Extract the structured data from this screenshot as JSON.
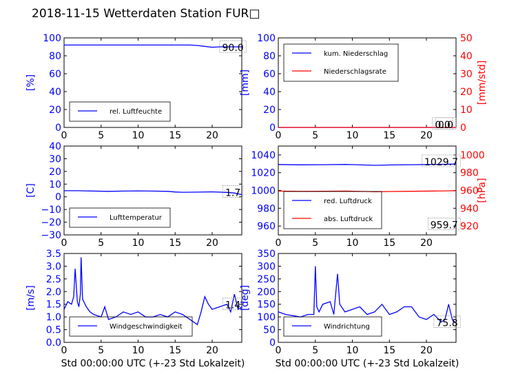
{
  "title": "2018-11-15 Wetterdaten Station FUR□",
  "chart_data": [
    {
      "type": "line",
      "panel": "top-left",
      "xlabel": "",
      "ylabel": "[%]",
      "xlim": [
        0,
        24
      ],
      "ylim": [
        0,
        100
      ],
      "xticks": [
        "0",
        "5",
        "10",
        "15",
        "20"
      ],
      "yticks": [
        "0",
        "20",
        "40",
        "60",
        "80",
        "100"
      ],
      "legend_position": "lower-left",
      "series": [
        {
          "name": "rel. Luftfeuchte",
          "color": "#0000ff",
          "x": [
            0,
            2,
            4,
            6,
            8,
            10,
            12,
            14,
            16,
            17,
            18,
            19,
            20,
            21,
            22,
            23,
            24
          ],
          "y": [
            92,
            92,
            92,
            92,
            92,
            92,
            92,
            92,
            92,
            92,
            91.5,
            90.5,
            89.5,
            90,
            90,
            90,
            90
          ]
        }
      ],
      "annotations": [
        {
          "text": "90.0",
          "x": 22.8,
          "y": 90
        }
      ]
    },
    {
      "type": "line",
      "panel": "top-right",
      "xlabel": "",
      "ylabel": "[mm]",
      "ylabel_right": "[mm/std]",
      "xlim": [
        0,
        24
      ],
      "ylim": [
        0,
        100
      ],
      "ylim_right": [
        0,
        50
      ],
      "xticks": [
        "0",
        "5",
        "10",
        "15",
        "20"
      ],
      "yticks": [
        "0",
        "20",
        "40",
        "60",
        "80",
        "100"
      ],
      "yticks_right": [
        "0",
        "10",
        "20",
        "30",
        "40",
        "50"
      ],
      "legend_position": "upper-left",
      "series": [
        {
          "name": "kum. Niederschlag",
          "color": "#0000ff",
          "x": [
            0,
            24
          ],
          "y": [
            0,
            0
          ]
        },
        {
          "name": "Niederschlagsrate",
          "color": "#ff0000",
          "axis": "right",
          "x": [
            0,
            24
          ],
          "y": [
            0,
            0
          ]
        }
      ],
      "annotations": [
        {
          "text": "0.0",
          "x": 22.2,
          "y": 4
        },
        {
          "text": "0.0",
          "x": 22.6,
          "y": 4
        }
      ]
    },
    {
      "type": "line",
      "panel": "middle-left",
      "xlabel": "",
      "ylabel": "[C]",
      "xlim": [
        0,
        24
      ],
      "ylim": [
        -30,
        40
      ],
      "xticks": [
        "0",
        "5",
        "10",
        "15",
        "20"
      ],
      "yticks": [
        "−30",
        "−20",
        "−10",
        "0",
        "10",
        "20",
        "30",
        "40"
      ],
      "legend_position": "lower-left",
      "series": [
        {
          "name": "Lufttemperatur",
          "color": "#0000ff",
          "x": [
            0,
            2,
            4,
            6,
            8,
            10,
            12,
            14,
            15,
            16,
            18,
            20,
            22,
            23,
            24
          ],
          "y": [
            4.8,
            4.8,
            4.5,
            4.3,
            4.5,
            4.7,
            4.5,
            4.3,
            3.8,
            3.6,
            3.7,
            3.9,
            3.5,
            3.0,
            1.7
          ]
        }
      ],
      "annotations": [
        {
          "text": "1.7",
          "x": 22.8,
          "y": 4
        }
      ]
    },
    {
      "type": "line",
      "panel": "middle-right",
      "xlabel": "",
      "ylabel": "",
      "ylabel_right": "[hPa]",
      "xlim": [
        0,
        24
      ],
      "ylim": [
        950,
        1050
      ],
      "ylim_right": [
        910,
        1010
      ],
      "xticks": [
        "0",
        "5",
        "10",
        "15",
        "20"
      ],
      "yticks": [
        "960",
        "980",
        "1000",
        "1020",
        "1040"
      ],
      "yticks_right": [
        "920",
        "940",
        "960",
        "980",
        "1000"
      ],
      "legend_position": "lower-left",
      "series": [
        {
          "name": "red. Luftdruck",
          "color": "#0000ff",
          "x": [
            0,
            3,
            6,
            9,
            12,
            13,
            15,
            18,
            21,
            24
          ],
          "y": [
            1029.2,
            1028.8,
            1029.0,
            1029.3,
            1028.6,
            1028.3,
            1028.7,
            1029.0,
            1029.3,
            1029.7
          ]
        },
        {
          "name": "abs. Luftdruck",
          "color": "#ff0000",
          "axis": "right",
          "x": [
            0,
            3,
            6,
            9,
            12,
            13,
            15,
            18,
            21,
            24
          ],
          "y": [
            959.3,
            959.0,
            959.1,
            959.3,
            958.8,
            958.6,
            958.8,
            959.1,
            959.4,
            959.7
          ]
        }
      ],
      "annotations": [
        {
          "text": "1029.7",
          "x": 22.0,
          "y": 1033
        },
        {
          "text": "959.7",
          "x": 22.4,
          "y": 962
        }
      ]
    },
    {
      "type": "line",
      "panel": "bottom-left",
      "xlabel": "Std 00:00:00 UTC (+-23 Std Lokalzeit)",
      "ylabel": "[m/s]",
      "xlim": [
        0,
        24
      ],
      "ylim": [
        0,
        3.5
      ],
      "xticks": [
        "0",
        "5",
        "10",
        "15",
        "20"
      ],
      "yticks": [
        "0.0",
        "0.5",
        "1.0",
        "1.5",
        "2.0",
        "2.5",
        "3.0",
        "3.5"
      ],
      "legend_position": "lower-center",
      "series": [
        {
          "name": "Windgeschwindigkeit",
          "color": "#0000ff",
          "x": [
            0,
            0.5,
            1,
            1.3,
            1.5,
            1.8,
            2,
            2.2,
            2.3,
            2.5,
            3,
            3.5,
            4,
            5,
            5.5,
            6,
            7,
            8,
            9,
            10,
            11,
            12,
            13,
            14,
            15,
            16,
            17,
            18,
            18.5,
            19,
            19.5,
            20,
            21,
            22,
            22.5,
            23,
            23.5,
            24
          ],
          "y": [
            1.3,
            1.6,
            1.5,
            1.8,
            2.9,
            1.6,
            1.4,
            1.9,
            3.35,
            1.7,
            1.4,
            1.2,
            1.1,
            1.0,
            1.4,
            0.9,
            1.0,
            1.2,
            1.1,
            1.2,
            1.0,
            1.0,
            1.1,
            1.0,
            1.2,
            1.1,
            0.9,
            0.7,
            1.2,
            1.8,
            1.5,
            1.3,
            1.4,
            1.5,
            1.2,
            1.9,
            1.3,
            1.4
          ]
        }
      ],
      "annotations": [
        {
          "text": "1.4",
          "x": 22.8,
          "y": 1.5
        }
      ]
    },
    {
      "type": "line",
      "panel": "bottom-right",
      "xlabel": "Std 00:00:00 UTC (+-23 Std Lokalzeit)",
      "ylabel": "[deg]",
      "xlim": [
        0,
        24
      ],
      "ylim": [
        0,
        350
      ],
      "xticks": [
        "0",
        "5",
        "10",
        "15",
        "20"
      ],
      "yticks": [
        "0",
        "50",
        "100",
        "150",
        "200",
        "250",
        "300",
        "350"
      ],
      "legend_position": "lower-left",
      "series": [
        {
          "name": "Windrichtung",
          "color": "#0000ff",
          "x": [
            0,
            1,
            2,
            3,
            4,
            4.8,
            5,
            5.2,
            5.5,
            6,
            7,
            7.5,
            8,
            8.3,
            9,
            10,
            11,
            12,
            13,
            14,
            15,
            16,
            17,
            18,
            19,
            20,
            21,
            22,
            22.5,
            23,
            23.5,
            24
          ],
          "y": [
            120,
            110,
            105,
            100,
            110,
            110,
            300,
            140,
            120,
            150,
            160,
            110,
            270,
            150,
            120,
            130,
            140,
            110,
            120,
            150,
            110,
            120,
            140,
            140,
            100,
            90,
            110,
            80,
            90,
            150,
            90,
            76
          ]
        }
      ],
      "annotations": [
        {
          "text": "75.8",
          "x": 22.8,
          "y": 80
        }
      ]
    }
  ]
}
